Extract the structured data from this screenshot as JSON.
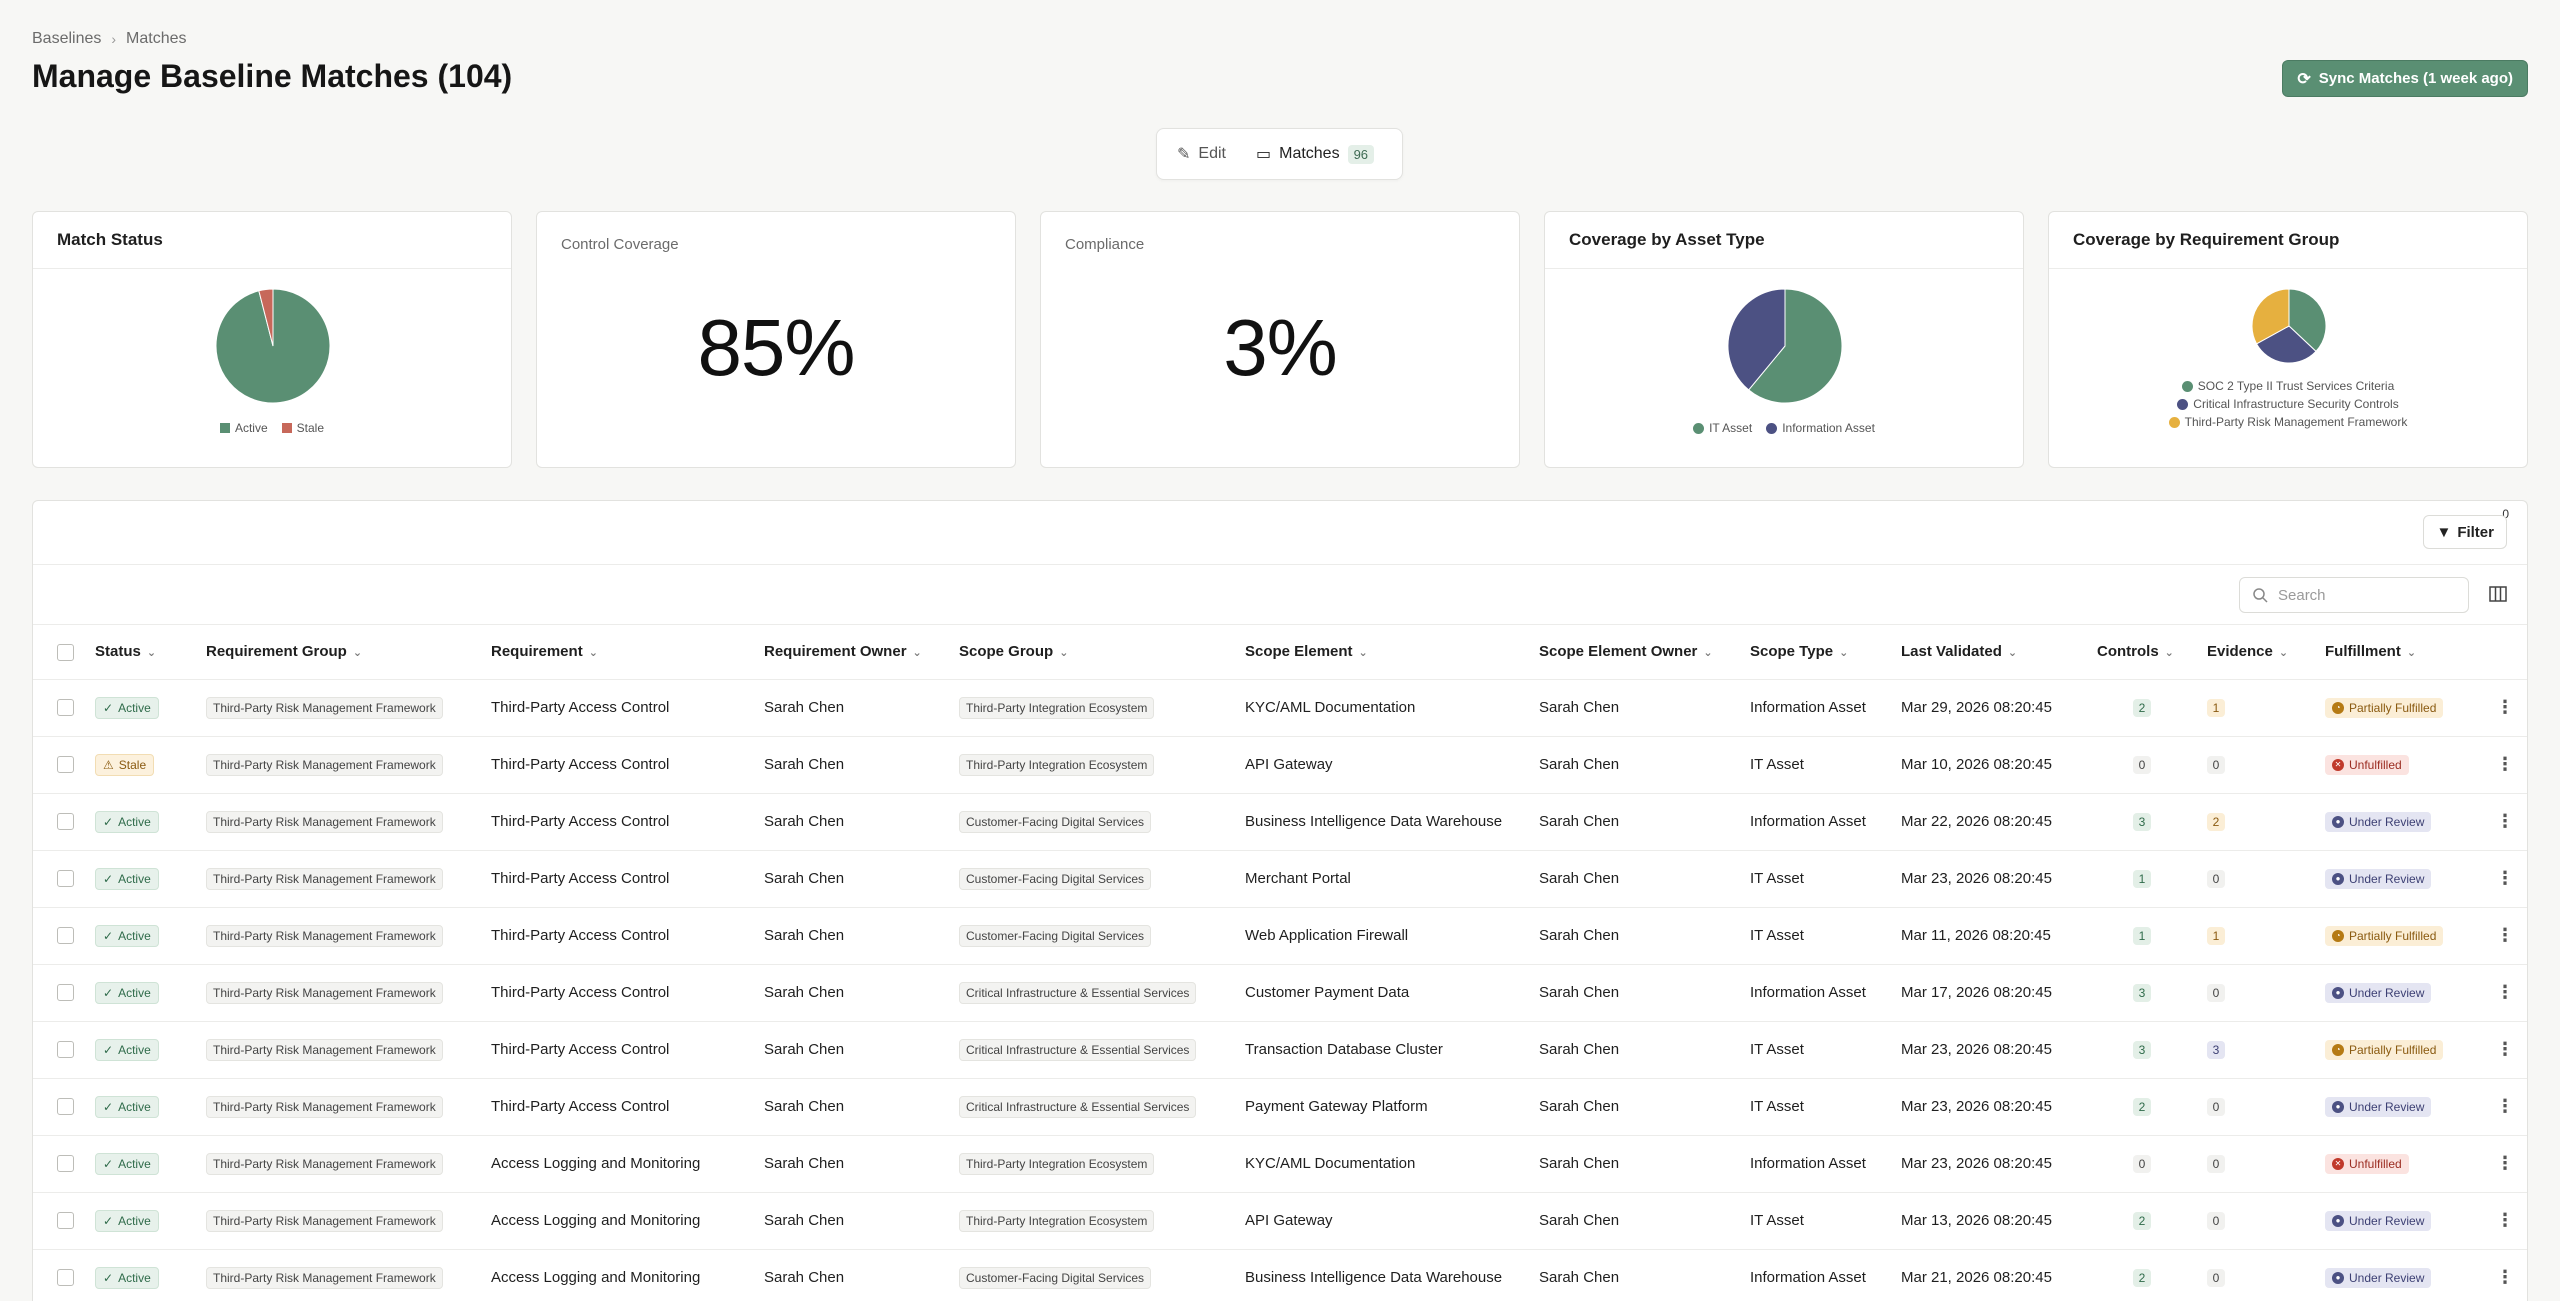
{
  "breadcrumb": {
    "root": "Baselines",
    "current": "Matches"
  },
  "page": {
    "title": "Manage Baseline Matches (104)"
  },
  "sync_button": {
    "label": "Sync Matches (1 week ago)"
  },
  "view_toggle": {
    "edit_label": "Edit",
    "matches_label": "Matches",
    "matches_count": "96"
  },
  "cards": {
    "match_status": {
      "title": "Match Status",
      "legend": [
        "Active",
        "Stale"
      ]
    },
    "control_coverage": {
      "title": "Control Coverage",
      "value": "85%"
    },
    "compliance": {
      "title": "Compliance",
      "value": "3%"
    },
    "asset_type": {
      "title": "Coverage by Asset Type",
      "legend": [
        "IT Asset",
        "Information Asset"
      ]
    },
    "requirement_group": {
      "title": "Coverage by Requirement Group",
      "legend": [
        "SOC 2 Type II Trust Services Criteria",
        "Critical Infrastructure Security Controls",
        "Third-Party Risk Management Framework"
      ]
    }
  },
  "colors": {
    "green": "#5a8f73",
    "red": "#c7685a",
    "navy": "#4c5183",
    "amber": "#e6b03f"
  },
  "chart_data": [
    {
      "type": "pie",
      "title": "Match Status",
      "labels": [
        "Active",
        "Stale"
      ],
      "values": [
        96,
        4
      ]
    },
    {
      "type": "pie",
      "title": "Coverage by Asset Type",
      "labels": [
        "IT Asset",
        "Information Asset"
      ],
      "values": [
        61,
        39
      ]
    },
    {
      "type": "pie",
      "title": "Coverage by Requirement Group",
      "labels": [
        "SOC 2 Type II Trust Services Criteria",
        "Critical Infrastructure Security Controls",
        "Third-Party Risk Management Framework"
      ],
      "values": [
        37,
        30,
        33
      ]
    }
  ],
  "toolbar": {
    "filter_label": "Filter",
    "filter_count": "0",
    "search_placeholder": "Search"
  },
  "table": {
    "columns": [
      "Status",
      "Requirement Group",
      "Requirement",
      "Requirement Owner",
      "Scope Group",
      "Scope Element",
      "Scope Element Owner",
      "Scope Type",
      "Last Validated",
      "Controls",
      "Evidence",
      "Fulfillment"
    ],
    "rows": [
      {
        "status": "Active",
        "req_group": "Third-Party Risk Management Framework",
        "requirement": "Third-Party Access Control",
        "req_owner": "Sarah Chen",
        "scope_group": "Third-Party Integration Ecosystem",
        "scope_element": "KYC/AML Documentation",
        "scope_owner": "Sarah Chen",
        "scope_type": "Information Asset",
        "last_validated": "Mar 29, 2026 08:20:45",
        "controls": "2",
        "evidence": "1",
        "fulfillment": "Partially Fulfilled"
      },
      {
        "status": "Stale",
        "req_group": "Third-Party Risk Management Framework",
        "requirement": "Third-Party Access Control",
        "req_owner": "Sarah Chen",
        "scope_group": "Third-Party Integration Ecosystem",
        "scope_element": "API Gateway",
        "scope_owner": "Sarah Chen",
        "scope_type": "IT Asset",
        "last_validated": "Mar 10, 2026 08:20:45",
        "controls": "0",
        "evidence": "0",
        "fulfillment": "Unfulfilled"
      },
      {
        "status": "Active",
        "req_group": "Third-Party Risk Management Framework",
        "requirement": "Third-Party Access Control",
        "req_owner": "Sarah Chen",
        "scope_group": "Customer-Facing Digital Services",
        "scope_element": "Business Intelligence Data Warehouse",
        "scope_owner": "Sarah Chen",
        "scope_type": "Information Asset",
        "last_validated": "Mar 22, 2026 08:20:45",
        "controls": "3",
        "evidence": "2",
        "fulfillment": "Under Review"
      },
      {
        "status": "Active",
        "req_group": "Third-Party Risk Management Framework",
        "requirement": "Third-Party Access Control",
        "req_owner": "Sarah Chen",
        "scope_group": "Customer-Facing Digital Services",
        "scope_element": "Merchant Portal",
        "scope_owner": "Sarah Chen",
        "scope_type": "IT Asset",
        "last_validated": "Mar 23, 2026 08:20:45",
        "controls": "1",
        "evidence": "0",
        "fulfillment": "Under Review"
      },
      {
        "status": "Active",
        "req_group": "Third-Party Risk Management Framework",
        "requirement": "Third-Party Access Control",
        "req_owner": "Sarah Chen",
        "scope_group": "Customer-Facing Digital Services",
        "scope_element": "Web Application Firewall",
        "scope_owner": "Sarah Chen",
        "scope_type": "IT Asset",
        "last_validated": "Mar 11, 2026 08:20:45",
        "controls": "1",
        "evidence": "1",
        "fulfillment": "Partially Fulfilled"
      },
      {
        "status": "Active",
        "req_group": "Third-Party Risk Management Framework",
        "requirement": "Third-Party Access Control",
        "req_owner": "Sarah Chen",
        "scope_group": "Critical Infrastructure & Essential Services",
        "scope_element": "Customer Payment Data",
        "scope_owner": "Sarah Chen",
        "scope_type": "Information Asset",
        "last_validated": "Mar 17, 2026 08:20:45",
        "controls": "3",
        "evidence": "0",
        "fulfillment": "Under Review"
      },
      {
        "status": "Active",
        "req_group": "Third-Party Risk Management Framework",
        "requirement": "Third-Party Access Control",
        "req_owner": "Sarah Chen",
        "scope_group": "Critical Infrastructure & Essential Services",
        "scope_element": "Transaction Database Cluster",
        "scope_owner": "Sarah Chen",
        "scope_type": "IT Asset",
        "last_validated": "Mar 23, 2026 08:20:45",
        "controls": "3",
        "evidence": "3",
        "fulfillment": "Partially Fulfilled"
      },
      {
        "status": "Active",
        "req_group": "Third-Party Risk Management Framework",
        "requirement": "Third-Party Access Control",
        "req_owner": "Sarah Chen",
        "scope_group": "Critical Infrastructure & Essential Services",
        "scope_element": "Payment Gateway Platform",
        "scope_owner": "Sarah Chen",
        "scope_type": "IT Asset",
        "last_validated": "Mar 23, 2026 08:20:45",
        "controls": "2",
        "evidence": "0",
        "fulfillment": "Under Review"
      },
      {
        "status": "Active",
        "req_group": "Third-Party Risk Management Framework",
        "requirement": "Access Logging and Monitoring",
        "req_owner": "Sarah Chen",
        "scope_group": "Third-Party Integration Ecosystem",
        "scope_element": "KYC/AML Documentation",
        "scope_owner": "Sarah Chen",
        "scope_type": "Information Asset",
        "last_validated": "Mar 23, 2026 08:20:45",
        "controls": "0",
        "evidence": "0",
        "fulfillment": "Unfulfilled"
      },
      {
        "status": "Active",
        "req_group": "Third-Party Risk Management Framework",
        "requirement": "Access Logging and Monitoring",
        "req_owner": "Sarah Chen",
        "scope_group": "Third-Party Integration Ecosystem",
        "scope_element": "API Gateway",
        "scope_owner": "Sarah Chen",
        "scope_type": "IT Asset",
        "last_validated": "Mar 13, 2026 08:20:45",
        "controls": "2",
        "evidence": "0",
        "fulfillment": "Under Review"
      },
      {
        "status": "Active",
        "req_group": "Third-Party Risk Management Framework",
        "requirement": "Access Logging and Monitoring",
        "req_owner": "Sarah Chen",
        "scope_group": "Customer-Facing Digital Services",
        "scope_element": "Business Intelligence Data Warehouse",
        "scope_owner": "Sarah Chen",
        "scope_type": "Information Asset",
        "last_validated": "Mar 21, 2026 08:20:45",
        "controls": "2",
        "evidence": "0",
        "fulfillment": "Under Review"
      }
    ]
  }
}
